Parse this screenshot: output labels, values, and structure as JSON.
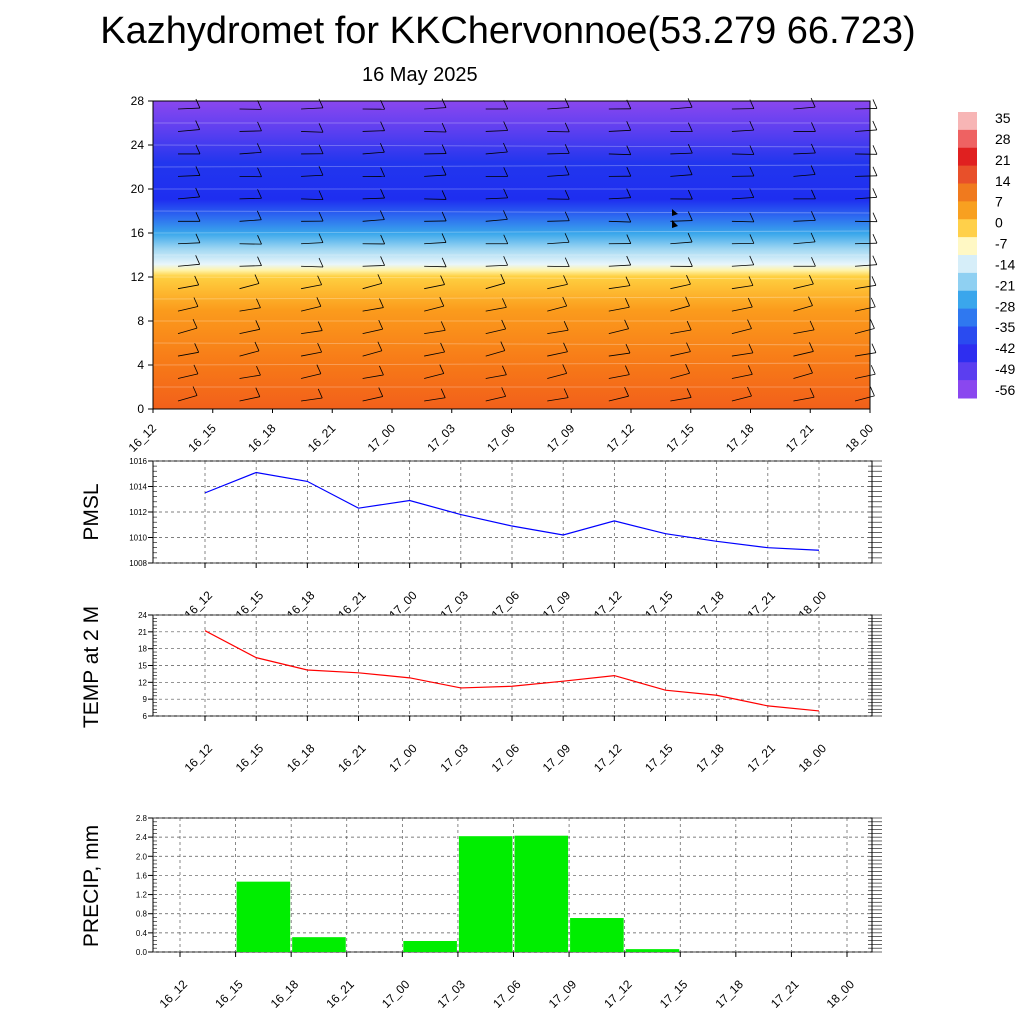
{
  "title": "Kazhydromet for KKChervonnoe(53.279 66.723)",
  "date": "16 May 2025",
  "colors": {
    "pmsl_line": "#0000ff",
    "temp_line": "#ff0000",
    "precip_bar": "#00ee00",
    "grid": "#555555"
  },
  "chart_data": [
    {
      "type": "heatmap",
      "name_hint": "vertical cross-section with wind barbs",
      "x_ticks": [
        "16_12",
        "16_15",
        "16_18",
        "16_21",
        "17_00",
        "17_03",
        "17_06",
        "17_09",
        "17_12",
        "17_15",
        "17_18",
        "17_21",
        "18_00"
      ],
      "y_ticks": [
        0,
        4,
        8,
        12,
        16,
        20,
        24,
        28
      ],
      "ylim": [
        0,
        28
      ],
      "colorbar_labels": [
        "35",
        "28",
        "21",
        "14",
        "7",
        "0",
        "-7",
        "-14",
        "-21",
        "-28",
        "-35",
        "-42",
        "-49",
        "-56"
      ]
    },
    {
      "type": "line",
      "ylabel": "PMSL",
      "x": [
        "16_12",
        "16_15",
        "16_18",
        "16_21",
        "17_00",
        "17_03",
        "17_06",
        "17_09",
        "17_12",
        "17_15",
        "17_18",
        "17_21",
        "18_00"
      ],
      "values": [
        1013.5,
        1015.1,
        1014.4,
        1012.3,
        1012.9,
        1011.8,
        1010.9,
        1010.2,
        1011.3,
        1010.3,
        1009.7,
        1009.2,
        1009.0
      ],
      "ylim": [
        1008,
        1016
      ],
      "y_ticks": [
        "1008",
        "1010",
        "1012",
        "1014",
        "1016"
      ]
    },
    {
      "type": "line",
      "ylabel": "TEMP at 2 M",
      "x": [
        "16_12",
        "16_15",
        "16_18",
        "16_21",
        "17_00",
        "17_03",
        "17_06",
        "17_09",
        "17_12",
        "17_15",
        "17_18",
        "17_21",
        "18_00"
      ],
      "values": [
        21.2,
        16.4,
        14.2,
        13.7,
        12.8,
        11.0,
        11.3,
        12.2,
        13.2,
        10.6,
        9.7,
        7.8,
        6.9
      ],
      "ylim": [
        6,
        24
      ],
      "y_ticks": [
        "6",
        "9",
        "12",
        "15",
        "18",
        "21",
        "24"
      ]
    },
    {
      "type": "bar",
      "ylabel": "PRECIP, mm",
      "categories": [
        "16_12",
        "16_15",
        "16_18",
        "16_21",
        "17_00",
        "17_03",
        "17_06",
        "17_09",
        "17_12",
        "17_15",
        "17_18",
        "17_21",
        "18_00"
      ],
      "values": [
        0,
        1.47,
        0.31,
        0,
        0.23,
        2.42,
        2.43,
        0.71,
        0.06,
        0,
        0,
        0,
        0
      ],
      "ylim": [
        0,
        2.8
      ],
      "y_ticks": [
        "0.0",
        "0.4",
        "0.8",
        "1.2",
        "1.6",
        "2.0",
        "2.4",
        "2.8"
      ]
    }
  ]
}
